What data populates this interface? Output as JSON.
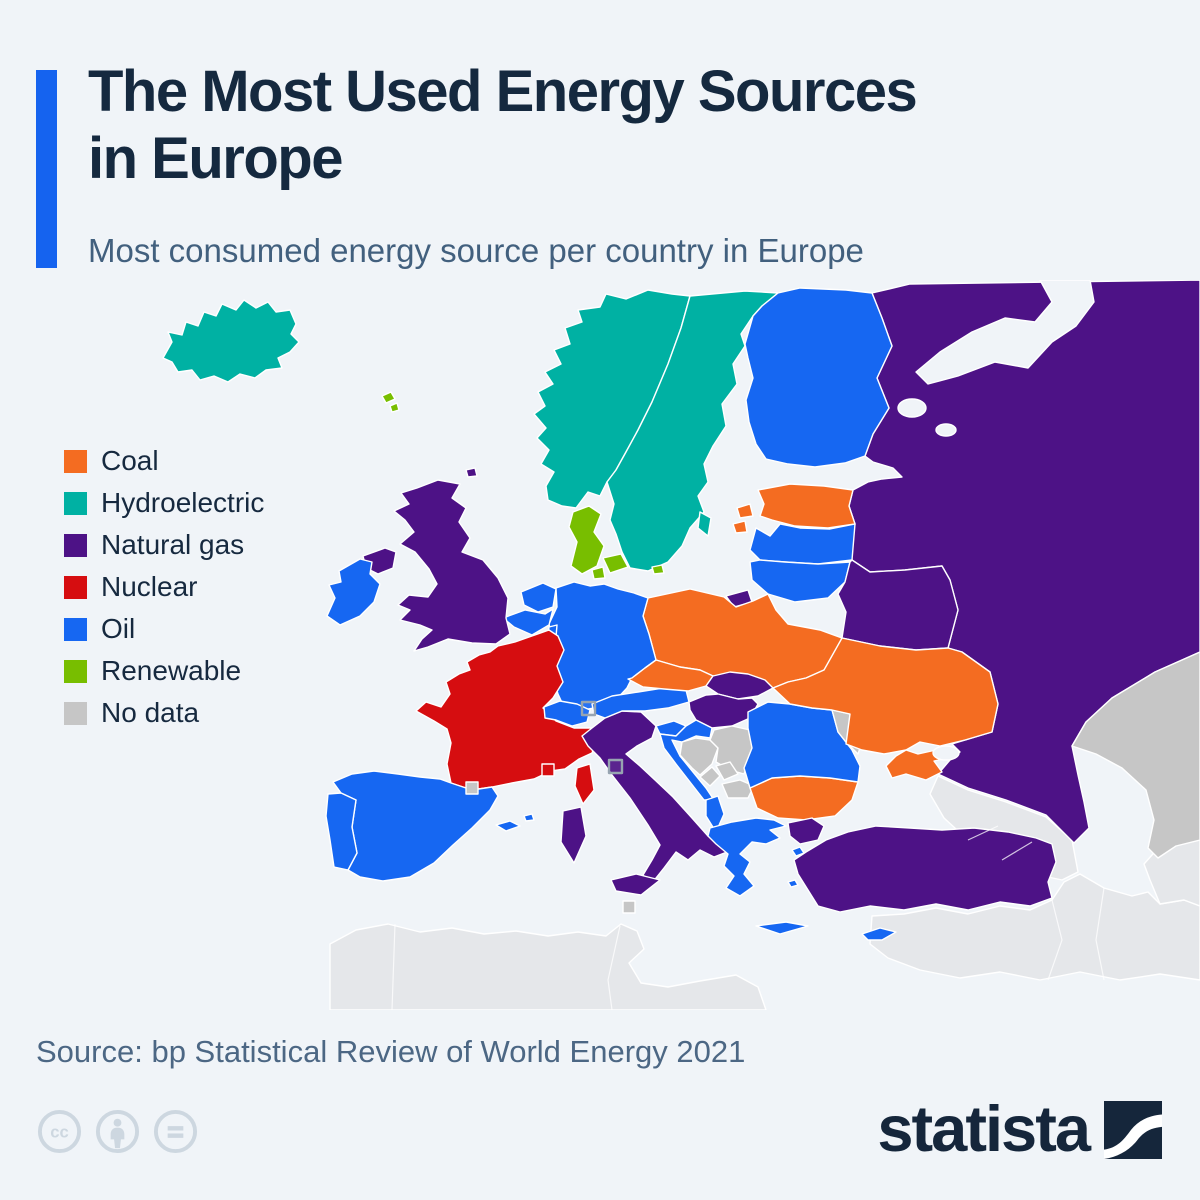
{
  "header": {
    "accent_color": "#1563ef",
    "title_line1": "The Most Used Energy Sources",
    "title_line2": "in Europe",
    "subtitle": "Most consumed energy source per country in Europe"
  },
  "legend": {
    "items": [
      {
        "label": "Coal",
        "color": "#f46c21"
      },
      {
        "label": "Hydroelectric",
        "color": "#00b1a3"
      },
      {
        "label": "Natural gas",
        "color": "#4d1286"
      },
      {
        "label": "Nuclear",
        "color": "#d60d10"
      },
      {
        "label": "Oil",
        "color": "#1667f2"
      },
      {
        "label": "Renewable",
        "color": "#78be00"
      },
      {
        "label": "No data",
        "color": "#c6c6c6"
      }
    ]
  },
  "map": {
    "sea_color": "#f0f4f8",
    "border_color": "#ffffff",
    "out_of_scope_color": "#e5e7ea",
    "assignments": {
      "Iceland": "Hydroelectric",
      "Norway": "Hydroelectric",
      "Sweden": "Hydroelectric",
      "Finland": "Oil",
      "Estonia": "Coal",
      "Latvia": "Oil",
      "Lithuania": "Oil",
      "Denmark": "Renewable",
      "Faroe Islands": "Renewable",
      "United Kingdom": "Natural gas",
      "Ireland": "Oil",
      "Netherlands": "Oil",
      "Belgium": "Oil",
      "Luxembourg": "Oil",
      "Germany": "Oil",
      "Poland": "Coal",
      "Czech Republic": "Coal",
      "Slovakia": "Natural gas",
      "Hungary": "Natural gas",
      "Austria": "Oil",
      "Switzerland": "Oil",
      "France": "Nuclear",
      "Monaco": "Nuclear",
      "Spain": "Oil",
      "Portugal": "Oil",
      "Andorra": "No data",
      "Italy": "Natural gas",
      "Slovenia": "Oil",
      "Croatia": "Oil",
      "Bosnia and Herzegovina": "No data",
      "Serbia": "No data",
      "Montenegro": "No data",
      "Kosovo": "No data",
      "North Macedonia": "No data",
      "Albania": "Oil",
      "Greece": "Oil",
      "Bulgaria": "Coal",
      "Romania": "Oil",
      "Moldova": "No data",
      "Ukraine": "Coal",
      "Belarus": "Natural gas",
      "Russia": "Natural gas",
      "Turkey": "Natural gas",
      "Cyprus": "Oil",
      "Malta": "No data",
      "Kazakhstan": "No data"
    }
  },
  "footer": {
    "source": "Source: bp Statistical Review of World Energy 2021",
    "license_icons": [
      "cc-icon",
      "attribution-icon",
      "nd-icon"
    ],
    "brand_wordmark": "statista"
  }
}
